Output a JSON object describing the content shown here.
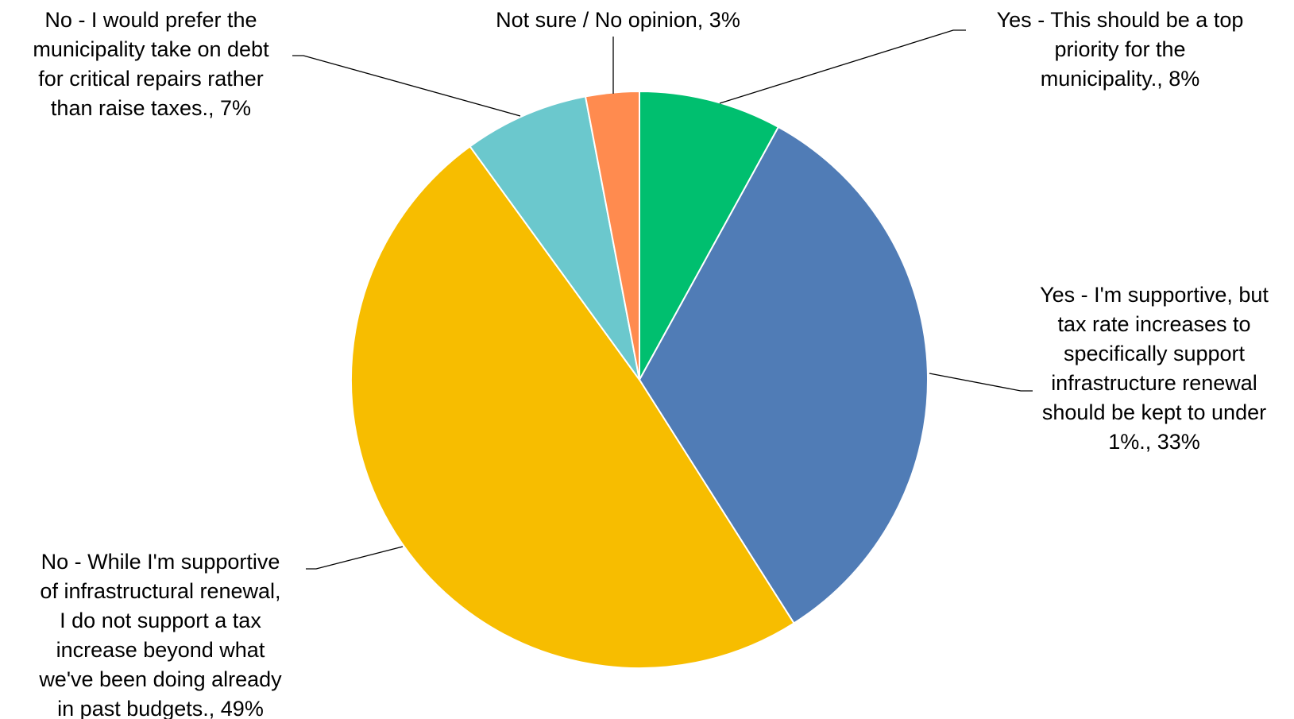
{
  "chart_data": {
    "type": "pie",
    "start_angle_deg": 0,
    "direction": "clockwise",
    "slices": [
      {
        "label_lines": [
          "Yes - This should be a top",
          "priority for the",
          "municipality., 8%"
        ],
        "value": 8,
        "color": "#00BF6F"
      },
      {
        "label_lines": [
          "Yes - I'm supportive, but",
          "tax rate increases to",
          "specifically support",
          "infrastructure renewal",
          "should be kept to under",
          "1%., 33%"
        ],
        "value": 33,
        "color": "#507CB6"
      },
      {
        "label_lines": [
          "No - While I'm supportive",
          "of infrastructural renewal,",
          "I do not support a tax",
          "increase beyond what",
          "we've been doing already",
          "in past budgets., 49%"
        ],
        "value": 49,
        "color": "#F7BD00"
      },
      {
        "label_lines": [
          "No - I would prefer the",
          "municipality take on debt",
          "for critical repairs rather",
          "than raise taxes., 7%"
        ],
        "value": 7,
        "color": "#6BC8CD"
      },
      {
        "label_lines": [
          "Not sure / No opinion, 3%"
        ],
        "value": 3,
        "color": "#FF8B4F"
      }
    ]
  }
}
